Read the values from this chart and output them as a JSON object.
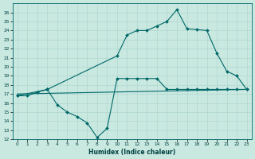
{
  "xlabel": "Humidex (Indice chaleur)",
  "bg_color": "#c8e8e0",
  "grid_color": "#b0d8d0",
  "line_color": "#006868",
  "xlim": [
    -0.5,
    23.5
  ],
  "ylim": [
    12,
    27
  ],
  "yticks": [
    12,
    13,
    14,
    15,
    16,
    17,
    18,
    19,
    20,
    21,
    22,
    23,
    24,
    25,
    26
  ],
  "xticks": [
    0,
    1,
    2,
    3,
    4,
    5,
    6,
    7,
    8,
    9,
    10,
    11,
    12,
    13,
    14,
    15,
    16,
    17,
    18,
    19,
    20,
    21,
    22,
    23
  ],
  "series1_x": [
    0,
    1,
    2,
    3,
    10,
    11,
    12,
    13,
    14,
    15,
    16,
    17,
    18,
    19,
    20,
    21,
    22,
    23
  ],
  "series1_y": [
    16.8,
    16.8,
    17.2,
    17.5,
    21.2,
    23.5,
    24.0,
    24.0,
    24.5,
    25.0,
    26.3,
    24.2,
    24.1,
    24.0,
    21.5,
    19.5,
    19.0,
    17.5
  ],
  "series2_x": [
    0,
    3,
    4,
    5,
    6,
    7,
    8,
    9,
    10,
    11,
    12,
    13,
    14,
    15,
    16,
    17,
    18,
    19,
    20,
    21,
    22,
    23
  ],
  "series2_y": [
    16.8,
    17.5,
    15.8,
    15.0,
    14.5,
    13.8,
    12.2,
    13.2,
    18.7,
    18.7,
    18.7,
    18.7,
    18.7,
    17.5,
    17.5,
    17.5,
    17.5,
    17.5,
    17.5,
    17.5,
    17.5,
    17.5
  ],
  "series3_x": [
    0,
    23
  ],
  "series3_y": [
    17.0,
    17.5
  ]
}
